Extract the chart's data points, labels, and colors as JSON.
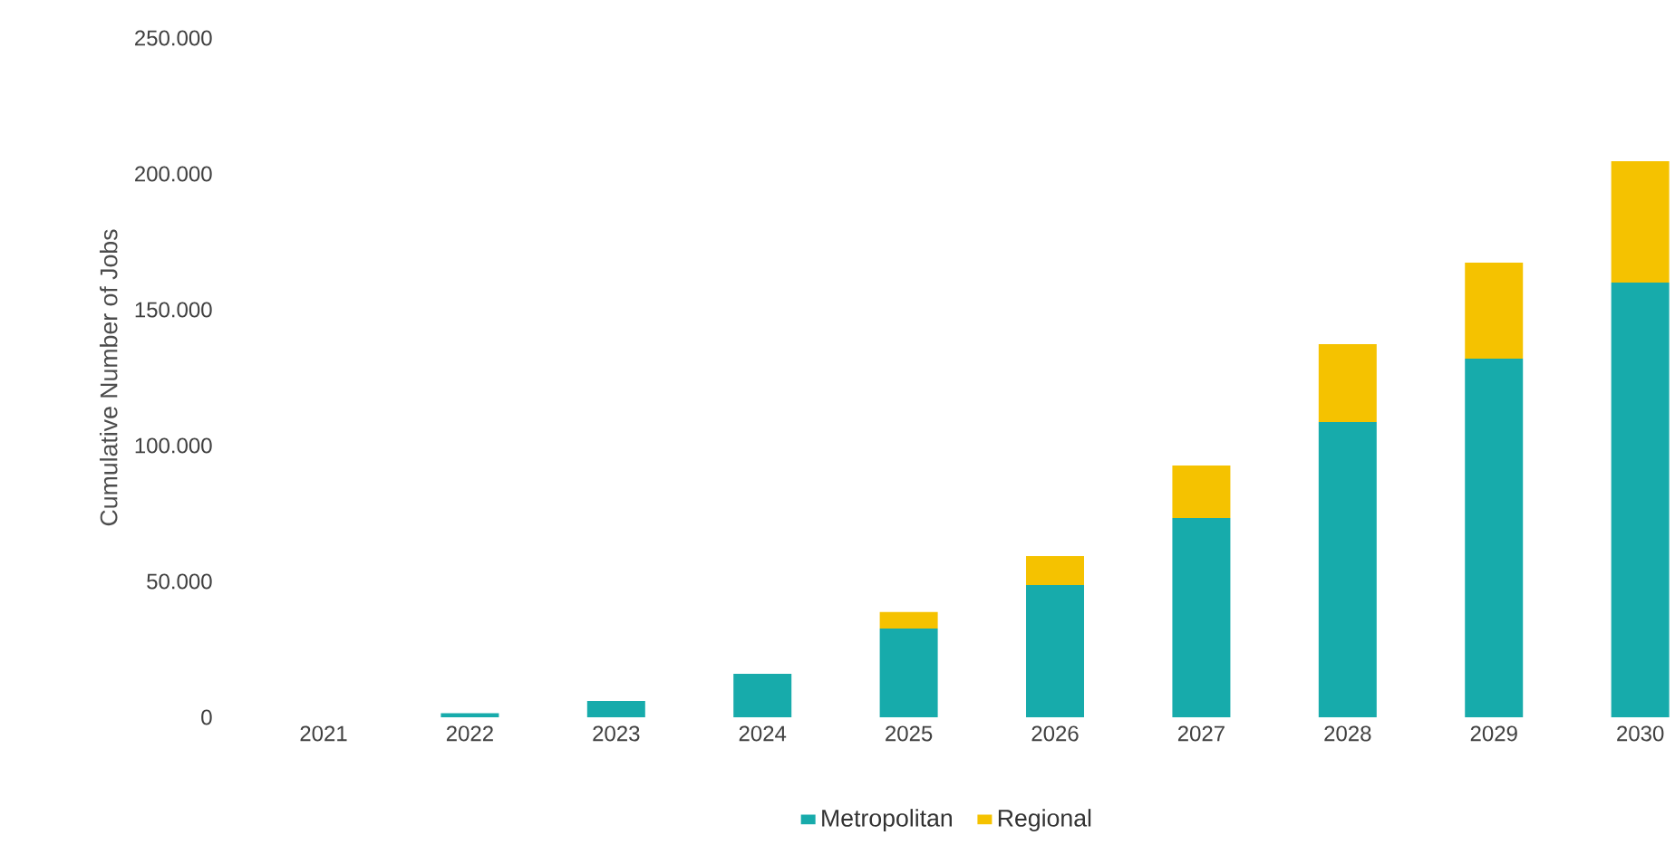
{
  "chart_data": {
    "type": "bar",
    "stacked": true,
    "ylabel": "Cumulative Number of Jobs",
    "categories": [
      "2021",
      "2022",
      "2023",
      "2024",
      "2025",
      "2026",
      "2027",
      "2028",
      "2029",
      "2030"
    ],
    "series": [
      {
        "name": "Metropolitan",
        "color": "#17abab",
        "values": [
          0,
          1500,
          6000,
          16000,
          32700,
          48700,
          73300,
          108700,
          132000,
          160000
        ]
      },
      {
        "name": "Regional",
        "color": "#f5c200",
        "values": [
          0,
          0,
          0,
          0,
          6000,
          10600,
          19400,
          28600,
          35300,
          44700
        ]
      }
    ],
    "ylim": [
      0,
      250000
    ],
    "yticks": [
      {
        "value": 0,
        "label": "0"
      },
      {
        "value": 50000,
        "label": "50.000"
      },
      {
        "value": 100000,
        "label": "100.000"
      },
      {
        "value": 150000,
        "label": "150.000"
      },
      {
        "value": 200000,
        "label": "200.000"
      },
      {
        "value": 250000,
        "label": "250.000"
      }
    ],
    "grid": false,
    "legend": "bottom"
  }
}
